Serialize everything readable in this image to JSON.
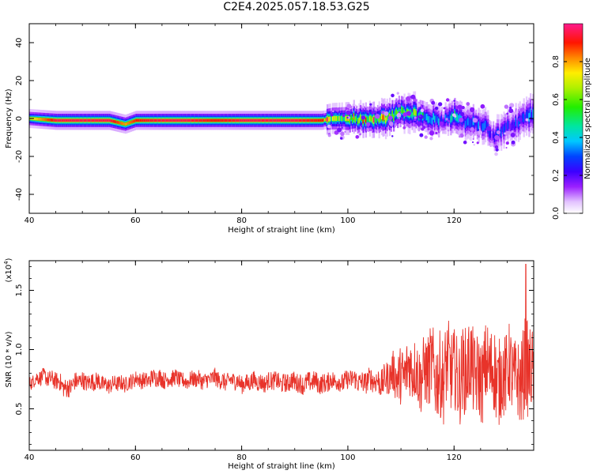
{
  "title": "C2E4.2025.057.18.53.G25",
  "chart_data": [
    {
      "type": "heatmap",
      "xlabel": "Height of straight line (km)",
      "ylabel": "Frequency (Hz)",
      "xlim": [
        40,
        135
      ],
      "ylim": [
        -50,
        50
      ],
      "xticks": [
        "40",
        "60",
        "80",
        "100",
        "120"
      ],
      "yticks": [
        "40",
        "20",
        "0",
        "-20",
        "-40"
      ],
      "colorbar": {
        "label": "Normalized spectral amplitude",
        "range": [
          0.0,
          1.0
        ],
        "ticks": [
          "0.0",
          "0.2",
          "0.4",
          "0.6",
          "0.8"
        ]
      },
      "ridge": {
        "x": [
          40,
          45,
          50,
          55,
          58,
          60,
          65,
          70,
          75,
          80,
          85,
          90,
          95,
          97,
          100,
          103,
          106,
          108,
          110,
          112,
          115,
          118,
          120,
          122,
          124,
          126,
          127,
          129,
          131,
          133,
          134
        ],
        "frequency": [
          0,
          -1,
          -1,
          -1,
          -3,
          -1,
          -1,
          -1,
          -1,
          -1,
          -1,
          -1,
          -1,
          0,
          0,
          -1,
          0,
          1,
          4,
          3,
          0,
          -1,
          2,
          -2,
          -3,
          -4,
          -10,
          -6,
          -3,
          0,
          2
        ],
        "amplitude": [
          0.7,
          0.95,
          0.95,
          0.95,
          0.8,
          0.9,
          0.95,
          0.95,
          0.9,
          0.95,
          0.95,
          0.95,
          0.9,
          0.6,
          0.65,
          0.75,
          0.8,
          0.6,
          0.5,
          0.55,
          0.4,
          0.3,
          0.4,
          0.35,
          0.3,
          0.25,
          0.2,
          0.25,
          0.25,
          0.3,
          0.3
        ]
      }
    },
    {
      "type": "line",
      "xlabel": "Height of straight line (km)",
      "ylabel": "SNR (10 * v/v)",
      "yscale_label": "(x10",
      "yscale_exponent": "4",
      "xlim": [
        40,
        135
      ],
      "ylim": [
        0.15,
        1.75
      ],
      "xticks": [
        "40",
        "60",
        "80",
        "100",
        "120"
      ],
      "yticks": [
        "1.5",
        "1.0",
        "0.5"
      ],
      "color": "#e8332a",
      "envelope": {
        "x": [
          40,
          43,
          47,
          50,
          53,
          56,
          60,
          65,
          70,
          75,
          80,
          85,
          90,
          95,
          100,
          105,
          108,
          110,
          113,
          116,
          118,
          120,
          122,
          125,
          128,
          130,
          132,
          133.5,
          135
        ],
        "mean": [
          0.72,
          0.78,
          0.68,
          0.74,
          0.72,
          0.7,
          0.74,
          0.76,
          0.74,
          0.75,
          0.72,
          0.73,
          0.72,
          0.72,
          0.74,
          0.73,
          0.76,
          0.8,
          0.82,
          0.8,
          0.82,
          0.8,
          0.82,
          0.8,
          0.8,
          0.78,
          0.78,
          0.8,
          0.78
        ],
        "amp": [
          0.07,
          0.08,
          0.1,
          0.09,
          0.09,
          0.08,
          0.08,
          0.09,
          0.08,
          0.09,
          0.09,
          0.09,
          0.1,
          0.1,
          0.1,
          0.12,
          0.18,
          0.3,
          0.32,
          0.4,
          0.45,
          0.4,
          0.45,
          0.42,
          0.45,
          0.42,
          0.4,
          0.5,
          0.4
        ]
      },
      "peak": {
        "x": 133.5,
        "y": 1.72
      }
    }
  ]
}
